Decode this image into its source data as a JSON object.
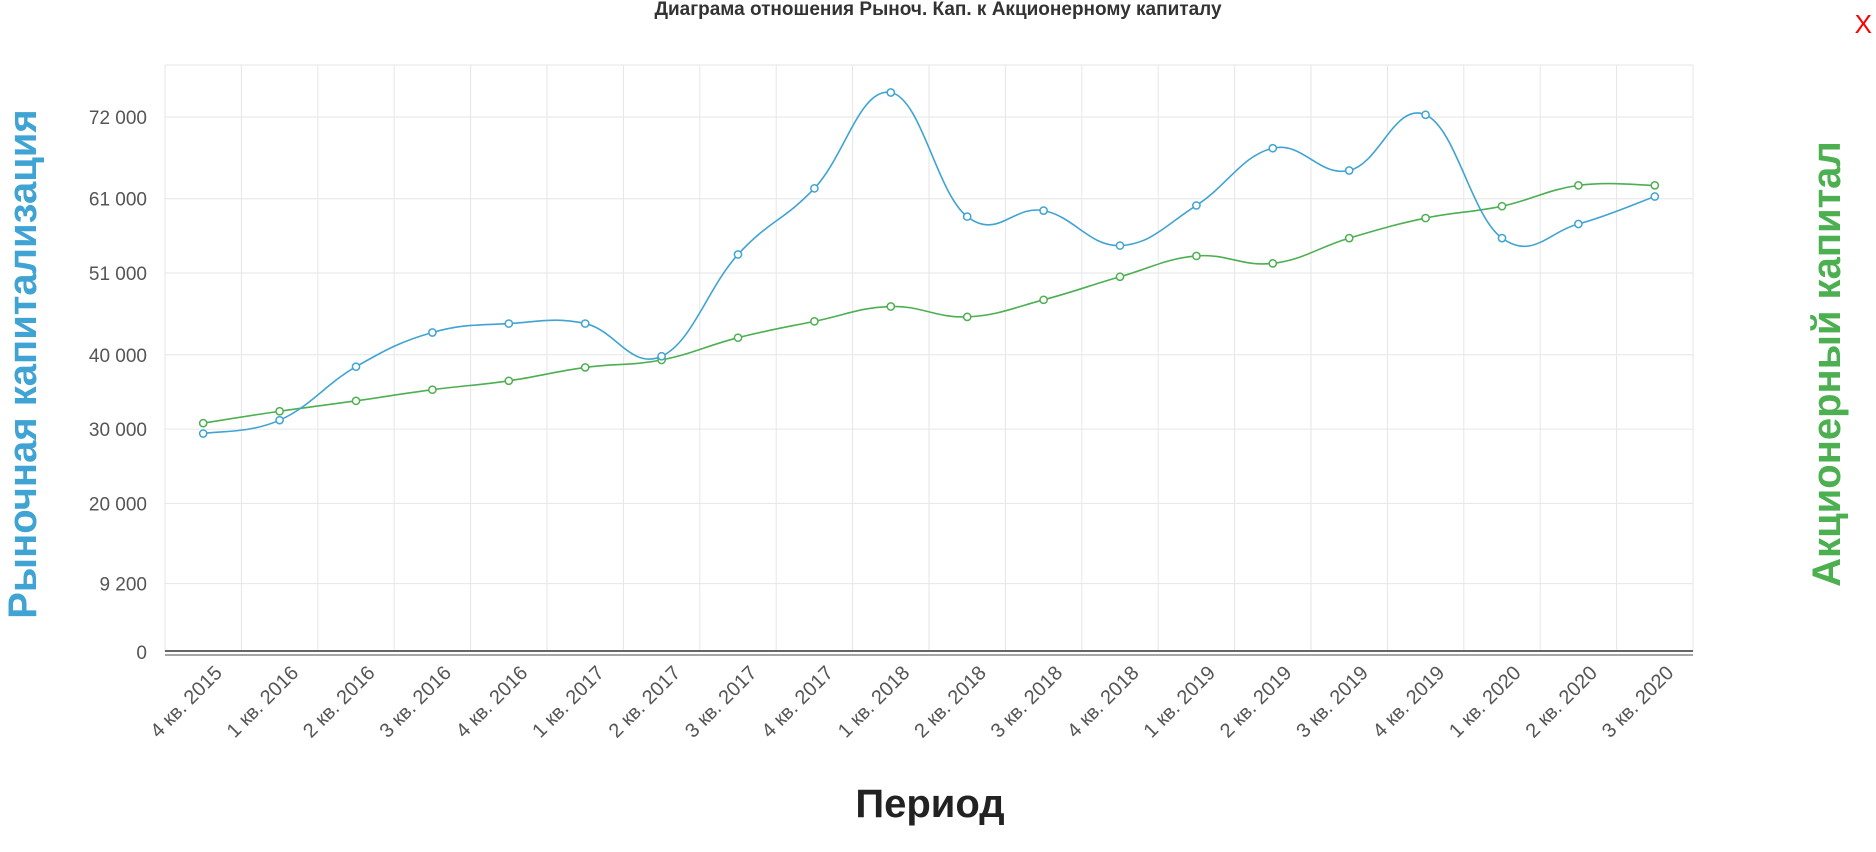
{
  "title": "Диаграма отношения Рыноч. Кап. к Акционерному капиталу",
  "close_label": "X",
  "colors": {
    "market_cap": "#3fa3d4",
    "equity": "#4caf50",
    "close": "#ff0000"
  },
  "chart_data": {
    "type": "line",
    "title": "Диаграма отношения Рыноч. Кап. к Акционерному капиталу",
    "xlabel": "Период",
    "ylabel_left": "Рыночная капитализация",
    "ylabel_right": "Акционерный капитал",
    "categories": [
      "4 кв. 2015",
      "1 кв. 2016",
      "2 кв. 2016",
      "3 кв. 2016",
      "4 кв. 2016",
      "1 кв. 2017",
      "2 кв. 2017",
      "3 кв. 2017",
      "4 кв. 2017",
      "1 кв. 2018",
      "2 кв. 2018",
      "3 кв. 2018",
      "4 кв. 2018",
      "1 кв. 2019",
      "2 кв. 2019",
      "3 кв. 2019",
      "4 кв. 2019",
      "1 кв. 2020",
      "2 кв. 2020",
      "3 кв. 2020"
    ],
    "yticks": [
      {
        "value": 0,
        "label": "0"
      },
      {
        "value": 9200,
        "label": "9 200"
      },
      {
        "value": 20000,
        "label": "20 000"
      },
      {
        "value": 30000,
        "label": "30 000"
      },
      {
        "value": 40000,
        "label": "40 000"
      },
      {
        "value": 51000,
        "label": "51 000"
      },
      {
        "value": 61000,
        "label": "61 000"
      },
      {
        "value": 72000,
        "label": "72 000"
      }
    ],
    "grid": true,
    "series": [
      {
        "key": "market_cap",
        "values": [
          29400,
          31200,
          38400,
          43000,
          44200,
          44200,
          39800,
          53500,
          62400,
          75300,
          58600,
          59400,
          54700,
          60100,
          67800,
          64800,
          72300,
          55700,
          57600,
          61300
        ]
      },
      {
        "key": "equity",
        "values": [
          30800,
          32400,
          33800,
          35300,
          36500,
          38300,
          39300,
          42300,
          44500,
          46500,
          45100,
          47400,
          50500,
          53300,
          52300,
          55700,
          58400,
          60000,
          62800,
          62800
        ]
      }
    ]
  }
}
